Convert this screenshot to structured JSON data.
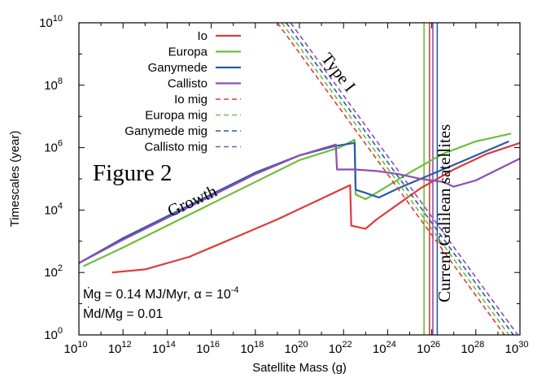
{
  "chart_data": {
    "type": "line",
    "xlabel": "Satellite Mass (g)",
    "ylabel": "Timescales (year)",
    "x_scale": "log",
    "y_scale": "log",
    "xlim_exp": [
      10,
      30
    ],
    "ylim_exp": [
      0,
      10
    ],
    "x_ticks": [
      10,
      12,
      14,
      16,
      18,
      20,
      22,
      24,
      26,
      28,
      30
    ],
    "y_ticks": [
      0,
      2,
      4,
      6,
      8,
      10
    ],
    "tick_base": "10",
    "colors": {
      "Io": "#e03a3a",
      "Europa": "#6cbf3c",
      "Ganymede": "#2a5aa8",
      "Callisto": "#8e4fb0"
    },
    "series": [
      {
        "name": "Io",
        "style": "solid",
        "color_key": "Io",
        "points_log": [
          [
            11.5,
            2.0
          ],
          [
            13.0,
            2.1
          ],
          [
            15.0,
            2.5
          ],
          [
            17.0,
            3.1
          ],
          [
            19.0,
            3.7
          ],
          [
            20.5,
            4.2
          ],
          [
            22.3,
            4.8
          ],
          [
            22.35,
            3.5
          ],
          [
            23.0,
            3.4
          ],
          [
            23.5,
            3.7
          ],
          [
            24.5,
            4.2
          ],
          [
            25.5,
            4.7
          ],
          [
            27.0,
            5.3
          ],
          [
            28.5,
            5.8
          ],
          [
            30.0,
            6.15
          ]
        ]
      },
      {
        "name": "Europa",
        "style": "solid",
        "color_key": "Europa",
        "points_log": [
          [
            10.2,
            2.2
          ],
          [
            12.0,
            2.8
          ],
          [
            14.0,
            3.5
          ],
          [
            16.0,
            4.2
          ],
          [
            18.0,
            4.9
          ],
          [
            20.0,
            5.6
          ],
          [
            21.8,
            6.0
          ],
          [
            22.5,
            6.25
          ],
          [
            22.55,
            4.5
          ],
          [
            23.0,
            4.35
          ],
          [
            23.6,
            4.6
          ],
          [
            25.0,
            5.2
          ],
          [
            26.5,
            5.8
          ],
          [
            28.0,
            6.2
          ],
          [
            29.6,
            6.45
          ]
        ]
      },
      {
        "name": "Ganymede",
        "style": "solid",
        "color_key": "Ganymede",
        "points_log": [
          [
            10.0,
            2.3
          ],
          [
            12.0,
            3.1
          ],
          [
            14.0,
            3.8
          ],
          [
            16.0,
            4.5
          ],
          [
            18.0,
            5.2
          ],
          [
            20.0,
            5.75
          ],
          [
            21.6,
            6.05
          ],
          [
            22.5,
            6.15
          ],
          [
            22.55,
            4.65
          ],
          [
            23.0,
            4.55
          ],
          [
            23.6,
            4.4
          ],
          [
            24.5,
            4.7
          ],
          [
            26.0,
            5.15
          ],
          [
            27.5,
            5.6
          ],
          [
            29.5,
            6.2
          ]
        ]
      },
      {
        "name": "Callisto",
        "style": "solid",
        "color_key": "Callisto",
        "points_log": [
          [
            10.0,
            2.3
          ],
          [
            12.0,
            3.05
          ],
          [
            14.0,
            3.75
          ],
          [
            16.0,
            4.45
          ],
          [
            18.0,
            5.15
          ],
          [
            20.0,
            5.75
          ],
          [
            21.65,
            6.1
          ],
          [
            21.7,
            5.3
          ],
          [
            22.5,
            5.3
          ],
          [
            23.5,
            5.25
          ],
          [
            24.5,
            5.15
          ],
          [
            25.5,
            5.0
          ],
          [
            26.5,
            4.9
          ],
          [
            27.0,
            4.75
          ],
          [
            28.0,
            4.95
          ],
          [
            30.0,
            5.65
          ]
        ]
      },
      {
        "name": "Io mig",
        "style": "dashed",
        "color_key": "Io",
        "points_log": [
          [
            19.0,
            10.0
          ],
          [
            29.3,
            0.0
          ]
        ]
      },
      {
        "name": "Europa mig",
        "style": "dashed",
        "color_key": "Europa",
        "points_log": [
          [
            19.2,
            10.0
          ],
          [
            29.5,
            0.0
          ]
        ]
      },
      {
        "name": "Ganymede mig",
        "style": "dashed",
        "color_key": "Ganymede",
        "points_log": [
          [
            19.4,
            10.0
          ],
          [
            29.7,
            0.0
          ]
        ]
      },
      {
        "name": "Callisto mig",
        "style": "dashed",
        "color_key": "Callisto",
        "points_log": [
          [
            19.6,
            10.0
          ],
          [
            29.9,
            0.0
          ]
        ]
      }
    ],
    "vertical_lines": [
      {
        "x_log": 25.65,
        "color_key": "Europa"
      },
      {
        "x_log": 25.9,
        "color_key": "Io"
      },
      {
        "x_log": 26.05,
        "color_key": "Callisto"
      },
      {
        "x_log": 26.25,
        "color_key": "Ganymede"
      }
    ],
    "legend_position": "top-left",
    "annotations": {
      "figure_label": "Figure 2",
      "growth": "Growth",
      "type1": "Type I",
      "current": "Current Galilean satellites",
      "eq1": "Ṁg  = 0.14 MJ/Myr, α = 10",
      "eq1_exp": "-4",
      "eq2": "Ṁd/Ṁg  = 0.01"
    }
  }
}
